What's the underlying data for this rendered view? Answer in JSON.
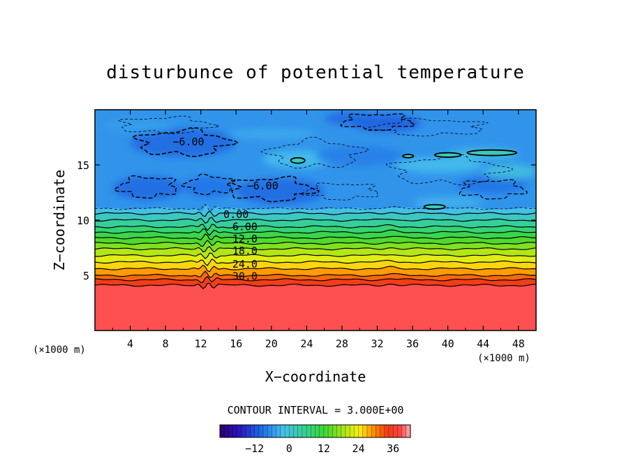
{
  "chart_data": {
    "type": "heatmap",
    "title": "disturbunce of potential temperature",
    "xlabel": "X−coordinate",
    "ylabel": "Z−coordinate",
    "x_unit": "(×1000 m)",
    "xlim": [
      0,
      50
    ],
    "ylim": [
      0,
      20
    ],
    "x_ticks": [
      4,
      8,
      12,
      16,
      20,
      24,
      28,
      32,
      36,
      40,
      44,
      48
    ],
    "y_ticks": [
      5,
      10,
      15
    ],
    "contour_interval": 3.0,
    "contour_interval_text": "CONTOUR INTERVAL = 3.000E+00",
    "colorbar": {
      "min": -24,
      "max": 42,
      "ticks": [
        {
          "value": -12,
          "label": "−12"
        },
        {
          "value": 0,
          "label": "0"
        },
        {
          "value": 12,
          "label": "12"
        },
        {
          "value": 24,
          "label": "24"
        },
        {
          "value": 36,
          "label": "36"
        }
      ]
    },
    "contour_levels": [
      {
        "value": 36,
        "z": 4.1
      },
      {
        "value": 33,
        "z": 4.6
      },
      {
        "value": 30,
        "z": 5.0
      },
      {
        "value": 27,
        "z": 5.6
      },
      {
        "value": 24,
        "z": 6.2
      },
      {
        "value": 21,
        "z": 6.8
      },
      {
        "value": 18,
        "z": 7.4
      },
      {
        "value": 15,
        "z": 7.9
      },
      {
        "value": 12,
        "z": 8.4
      },
      {
        "value": 9,
        "z": 8.9
      },
      {
        "value": 6,
        "z": 9.4
      },
      {
        "value": 3,
        "z": 10.0
      },
      {
        "value": 0,
        "z": 10.6
      }
    ],
    "contour_labels": [
      {
        "text": "−6.00",
        "x": 10.6,
        "z": 17.1
      },
      {
        "text": "−6.00",
        "x": 19.0,
        "z": 13.1
      },
      {
        "text": "0.00",
        "x": 16.0,
        "z": 10.5
      },
      {
        "text": "6.00",
        "x": 17.0,
        "z": 9.4
      },
      {
        "text": "12.0",
        "x": 17.0,
        "z": 8.3
      },
      {
        "text": "18.0",
        "x": 17.0,
        "z": 7.2
      },
      {
        "text": "24.0",
        "x": 17.0,
        "z": 6.0
      },
      {
        "text": "30.0",
        "x": 17.0,
        "z": 4.9
      }
    ],
    "surface_value": 39,
    "upper_layer_value": -6
  }
}
